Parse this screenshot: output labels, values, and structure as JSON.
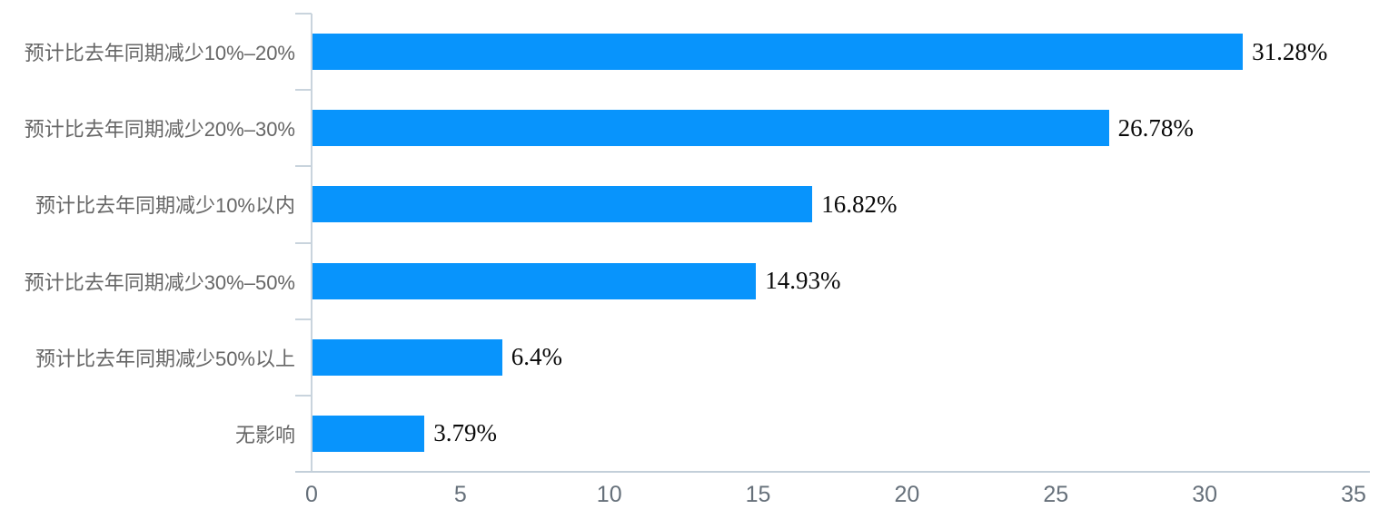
{
  "chart_data": {
    "type": "bar",
    "orientation": "horizontal",
    "title": "",
    "xlabel": "",
    "ylabel": "",
    "grid": false,
    "legend": null,
    "categories": [
      "预计比去年同期减少10%–20%",
      "预计比去年同期减少20%–30%",
      "预计比去年同期减少10%以内",
      "预计比去年同期减少30%–50%",
      "预计比去年同期减少50%以上",
      "无影响"
    ],
    "values": [
      31.28,
      26.78,
      16.82,
      14.93,
      6.4,
      3.79
    ],
    "value_labels": [
      "31.28%",
      "26.78%",
      "16.82%",
      "14.93%",
      "6.4%",
      "3.79%"
    ],
    "x_ticks": [
      0,
      5,
      10,
      15,
      20,
      25,
      30,
      35
    ],
    "xlim": [
      0,
      35
    ],
    "colors": {
      "bar": "#0894fc",
      "axis_line": "#c9d4dd",
      "category_label": "#666666",
      "x_tick_label": "#66707a",
      "value_label": "#0a0a0a"
    }
  }
}
